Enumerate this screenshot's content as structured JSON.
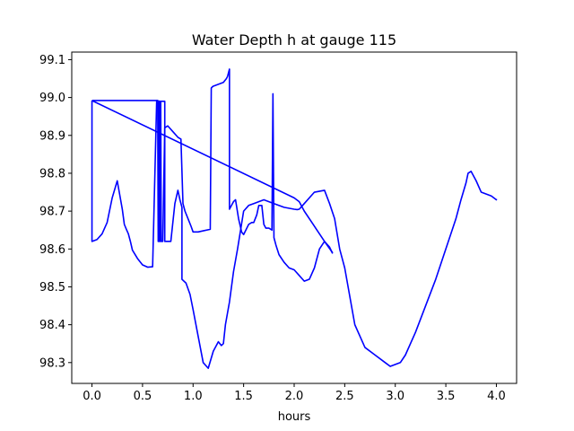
{
  "chart_data": {
    "type": "line",
    "title": "Water Depth h at gauge 115",
    "xlabel": "hours",
    "ylabel": "",
    "xlim": [
      -0.2,
      4.2
    ],
    "ylim": [
      98.245,
      99.12
    ],
    "xticks": [
      0.0,
      0.5,
      1.0,
      1.5,
      2.0,
      2.5,
      3.0,
      3.5,
      4.0
    ],
    "xtick_labels": [
      "0.0",
      "0.5",
      "1.0",
      "1.5",
      "2.0",
      "2.5",
      "3.0",
      "3.5",
      "4.0"
    ],
    "yticks": [
      98.3,
      98.4,
      98.5,
      98.6,
      98.7,
      98.8,
      98.9,
      99.0,
      99.1
    ],
    "ytick_labels": [
      "98.3",
      "98.4",
      "98.5",
      "98.6",
      "98.7",
      "98.8",
      "98.9",
      "99.0",
      "99.1"
    ],
    "grid": false,
    "legend": "none",
    "series": [
      {
        "color": "#0000ff",
        "x": [
          0.0,
          0.0,
          0.05,
          0.1,
          0.15,
          0.2,
          0.25,
          0.3,
          0.32,
          0.34,
          0.36,
          0.38,
          0.4,
          0.45,
          0.5,
          0.55,
          0.6,
          0.64,
          0.67,
          0.7,
          0.72,
          0.72,
          0.74,
          0.78,
          0.82,
          0.85,
          0.87,
          0.89,
          0.89,
          0.93,
          0.97,
          1.0,
          1.05,
          1.1,
          1.15,
          1.2,
          1.25,
          1.28,
          1.3,
          1.32,
          1.36,
          1.4,
          1.44,
          1.47,
          1.5,
          1.55,
          1.6,
          1.7,
          1.8,
          1.9,
          2.0,
          2.03,
          2.05,
          2.1,
          2.2,
          2.3,
          2.35,
          2.4,
          2.45,
          2.5,
          2.6,
          2.7,
          2.8,
          2.9,
          2.95,
          3.0,
          3.05,
          3.1,
          3.2,
          3.3,
          3.4,
          3.5,
          3.6,
          3.65,
          3.7,
          3.72,
          3.75,
          3.8,
          3.85,
          3.9,
          3.95,
          4.0,
          4.0
        ],
        "y": [
          98.992,
          98.62,
          98.625,
          98.64,
          98.67,
          98.735,
          98.78,
          98.705,
          98.665,
          98.652,
          98.64,
          98.62,
          98.597,
          98.575,
          98.558,
          98.552,
          98.553,
          98.992,
          98.99,
          98.99,
          98.99,
          98.62,
          98.62,
          98.62,
          98.72,
          98.755,
          98.73,
          98.71,
          98.52,
          98.51,
          98.48,
          98.44,
          98.37,
          98.3,
          98.285,
          98.33,
          98.355,
          98.345,
          98.35,
          98.4,
          98.46,
          98.54,
          98.6,
          98.65,
          98.7,
          98.715,
          98.72,
          98.73,
          98.72,
          98.71,
          98.705,
          98.704,
          98.705,
          98.72,
          98.75,
          98.755,
          98.72,
          98.68,
          98.6,
          98.55,
          98.4,
          98.34,
          98.32,
          98.3,
          98.29,
          98.295,
          98.3,
          98.32,
          98.38,
          98.45,
          98.52,
          98.6,
          98.68,
          98.73,
          98.775,
          98.8,
          98.805,
          98.78,
          98.75,
          98.745,
          98.74,
          98.73,
          98.732
        ]
      },
      {
        "color": "#0000ff",
        "x": [
          0.0,
          0.65,
          0.655,
          0.66,
          0.665,
          0.67,
          0.675,
          0.68,
          0.685,
          0.69,
          0.7,
          0.72,
          0.75,
          0.8,
          0.85,
          0.88,
          0.9,
          0.92,
          0.95,
          0.98,
          1.0,
          1.05,
          1.1,
          1.17,
          1.18,
          1.19,
          1.2,
          1.25,
          1.3,
          1.33,
          1.34,
          1.36,
          1.36,
          1.37,
          1.4,
          1.42,
          1.45,
          1.48,
          1.5,
          1.55,
          1.58,
          1.6,
          1.63,
          1.65,
          1.68,
          1.7,
          1.72,
          1.75,
          1.78,
          1.79,
          1.8,
          1.81,
          1.82,
          1.85,
          1.9,
          1.95,
          2.0,
          2.05,
          2.1,
          2.15,
          2.2,
          2.25,
          2.3,
          2.35,
          2.38
        ],
        "y": [
          98.992,
          98.992,
          98.62,
          98.99,
          98.62,
          98.99,
          98.62,
          98.99,
          98.62,
          98.62,
          98.62,
          98.92,
          98.925,
          98.91,
          98.895,
          98.89,
          98.72,
          98.7,
          98.68,
          98.66,
          98.645,
          98.645,
          98.648,
          98.652,
          99.025,
          99.028,
          99.03,
          99.035,
          99.04,
          99.05,
          99.055,
          99.075,
          98.705,
          98.71,
          98.725,
          98.73,
          98.68,
          98.645,
          98.638,
          98.665,
          98.67,
          98.67,
          98.69,
          98.715,
          98.715,
          98.665,
          98.655,
          98.655,
          98.65,
          99.01,
          98.63,
          98.62,
          98.61,
          98.585,
          98.565,
          98.55,
          98.545,
          98.53,
          98.515,
          98.52,
          98.55,
          98.6,
          98.62,
          98.605,
          98.588
        ]
      },
      {
        "color": "#0000ff",
        "x": [
          0.0,
          2.0,
          2.05,
          2.1,
          2.2,
          2.3,
          2.38
        ],
        "y": [
          98.992,
          98.735,
          98.725,
          98.7,
          98.66,
          98.62,
          98.59
        ]
      }
    ]
  }
}
